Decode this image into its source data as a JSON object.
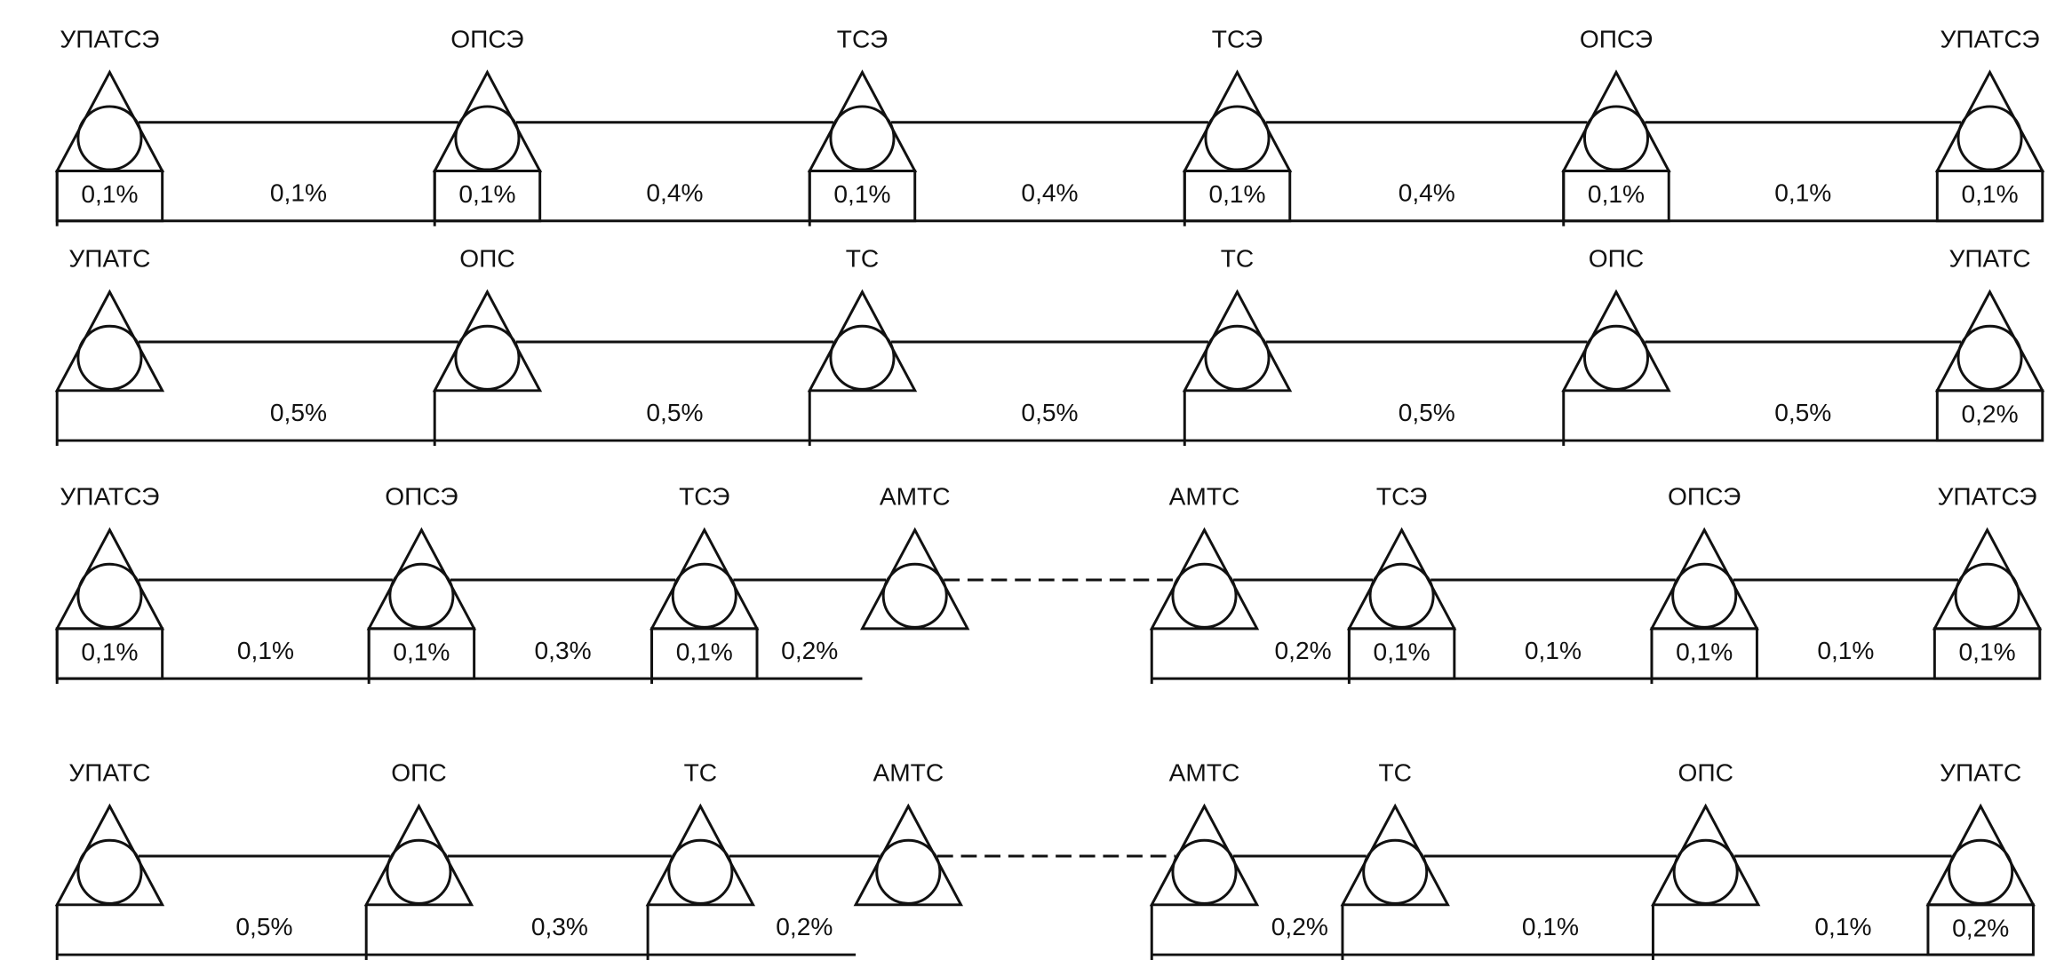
{
  "rows": [
    {
      "nodes": [
        {
          "label": "УПАТСЭ",
          "box": "0,1%"
        },
        {
          "label": "ОПСЭ",
          "box": "0,1%"
        },
        {
          "label": "ТСЭ",
          "box": "0,1%"
        },
        {
          "label": "ТСЭ",
          "box": "0,1%"
        },
        {
          "label": "ОПСЭ",
          "box": "0,1%"
        },
        {
          "label": "УПАТСЭ",
          "box": "0,1%"
        }
      ],
      "links": [
        "0,1%",
        "0,4%",
        "0,4%",
        "0,4%",
        "0,1%"
      ]
    },
    {
      "nodes": [
        {
          "label": "УПАТС"
        },
        {
          "label": "ОПС"
        },
        {
          "label": "ТС"
        },
        {
          "label": "ТС"
        },
        {
          "label": "ОПС"
        },
        {
          "label": "УПАТС",
          "box": "0,2%"
        }
      ],
      "links": [
        "0,5%",
        "0,5%",
        "0,5%",
        "0,5%",
        "0,5%"
      ]
    },
    {
      "nodes": [
        {
          "label": "УПАТСЭ",
          "box": "0,1%"
        },
        {
          "label": "ОПСЭ",
          "box": "0,1%"
        },
        {
          "label": "ТСЭ",
          "box": "0,1%"
        },
        {
          "label": "АМТС"
        },
        {
          "label": "АМТС"
        },
        {
          "label": "ТСЭ",
          "box": "0,1%"
        },
        {
          "label": "ОПСЭ",
          "box": "0,1%"
        },
        {
          "label": "УПАТСЭ",
          "box": "0,1%"
        }
      ],
      "links": [
        "0,1%",
        "0,3%",
        "0,2%",
        null,
        "0,2%",
        "0,1%",
        "0,1%"
      ]
    },
    {
      "nodes": [
        {
          "label": "УПАТС"
        },
        {
          "label": "ОПС"
        },
        {
          "label": "ТС"
        },
        {
          "label": "АМТС"
        },
        {
          "label": "АМТС"
        },
        {
          "label": "ТС"
        },
        {
          "label": "ОПС"
        },
        {
          "label": "УПАТС",
          "box": "0,2%"
        }
      ],
      "links": [
        "0,5%",
        "0,3%",
        "0,2%",
        null,
        "0,2%",
        "0,1%",
        "0,1%"
      ]
    }
  ]
}
